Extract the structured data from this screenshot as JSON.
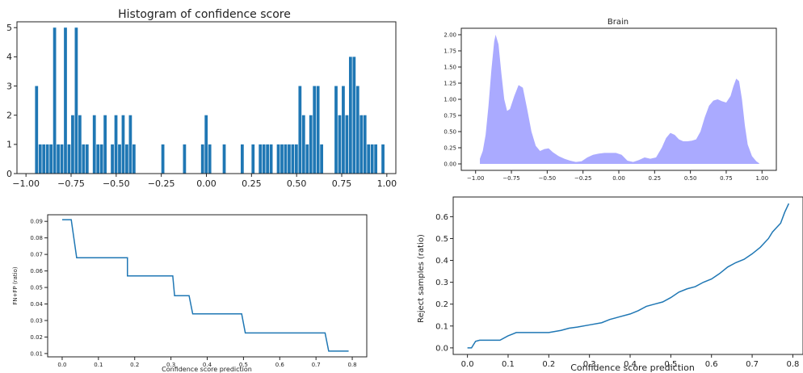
{
  "chart_data": [
    {
      "type": "bar",
      "title": "Histogram of confidence score",
      "xlabel": "",
      "ylabel": "",
      "xlim": [
        -1.05,
        1.05
      ],
      "ylim": [
        0,
        5.2
      ],
      "xticks": [
        -1.0,
        -0.75,
        -0.5,
        -0.25,
        0.0,
        0.25,
        0.5,
        0.75,
        1.0
      ],
      "xtick_labels": [
        "−1.00",
        "−0.75",
        "−0.50",
        "−0.25",
        "0.00",
        "0.25",
        "0.50",
        "0.75",
        "1.00"
      ],
      "yticks": [
        0,
        1,
        2,
        3,
        4,
        5
      ],
      "ytick_labels": [
        "0",
        "1",
        "2",
        "3",
        "4",
        "5"
      ],
      "color": "#1f77b4",
      "bin_width": 0.0195,
      "bin_centers": [
        -0.94,
        -0.92,
        -0.9,
        -0.88,
        -0.86,
        -0.84,
        -0.82,
        -0.8,
        -0.78,
        -0.76,
        -0.74,
        -0.72,
        -0.7,
        -0.68,
        -0.66,
        -0.62,
        -0.6,
        -0.58,
        -0.56,
        -0.52,
        -0.5,
        -0.48,
        -0.46,
        -0.44,
        -0.42,
        -0.4,
        -0.24,
        -0.12,
        -0.02,
        0.0,
        0.02,
        0.1,
        0.2,
        0.26,
        0.3,
        0.32,
        0.34,
        0.36,
        0.4,
        0.42,
        0.44,
        0.46,
        0.48,
        0.5,
        0.52,
        0.54,
        0.56,
        0.58,
        0.6,
        0.62,
        0.64,
        0.72,
        0.74,
        0.76,
        0.78,
        0.8,
        0.82,
        0.84,
        0.86,
        0.88,
        0.9,
        0.92,
        0.94,
        0.98
      ],
      "values": [
        3,
        1,
        1,
        1,
        1,
        5,
        1,
        1,
        5,
        1,
        2,
        5,
        2,
        1,
        1,
        2,
        1,
        1,
        2,
        1,
        2,
        1,
        2,
        1,
        2,
        1,
        1,
        1,
        1,
        2,
        1,
        1,
        1,
        1,
        1,
        1,
        1,
        1,
        1,
        1,
        1,
        1,
        1,
        1,
        3,
        2,
        1,
        2,
        3,
        3,
        1,
        3,
        2,
        3,
        2,
        4,
        4,
        3,
        2,
        2,
        1,
        1,
        1,
        1
      ]
    },
    {
      "type": "area",
      "title": "Brain",
      "xlabel": "",
      "ylabel": "",
      "xlim": [
        -1.1,
        1.1
      ],
      "ylim": [
        -0.1,
        2.1
      ],
      "xticks": [
        -1.0,
        -0.75,
        -0.5,
        -0.25,
        0.0,
        0.25,
        0.5,
        0.75,
        1.0
      ],
      "xtick_labels": [
        "−1.00",
        "−0.75",
        "−0.50",
        "−0.25",
        "0.00",
        "0.25",
        "0.50",
        "0.75",
        "1.00"
      ],
      "yticks": [
        0.0,
        0.25,
        0.5,
        0.75,
        1.0,
        1.25,
        1.5,
        1.75,
        2.0
      ],
      "ytick_labels": [
        "0.00",
        "0.25",
        "0.50",
        "0.75",
        "1.00",
        "1.25",
        "1.50",
        "1.75",
        "2.00"
      ],
      "color": "#aaaaff",
      "x": [
        -0.97,
        -0.95,
        -0.93,
        -0.91,
        -0.89,
        -0.87,
        -0.86,
        -0.84,
        -0.82,
        -0.8,
        -0.78,
        -0.76,
        -0.73,
        -0.7,
        -0.67,
        -0.64,
        -0.61,
        -0.58,
        -0.55,
        -0.52,
        -0.49,
        -0.46,
        -0.42,
        -0.38,
        -0.34,
        -0.3,
        -0.26,
        -0.22,
        -0.18,
        -0.14,
        -0.1,
        -0.06,
        -0.02,
        0.02,
        0.06,
        0.1,
        0.14,
        0.18,
        0.22,
        0.26,
        0.3,
        0.33,
        0.36,
        0.39,
        0.42,
        0.45,
        0.48,
        0.51,
        0.54,
        0.57,
        0.6,
        0.63,
        0.66,
        0.69,
        0.72,
        0.75,
        0.78,
        0.8,
        0.82,
        0.84,
        0.86,
        0.88,
        0.9,
        0.93,
        0.96,
        0.98
      ],
      "y": [
        0.08,
        0.2,
        0.45,
        0.9,
        1.45,
        1.9,
        2.0,
        1.85,
        1.4,
        1.0,
        0.82,
        0.85,
        1.05,
        1.22,
        1.18,
        0.85,
        0.5,
        0.28,
        0.2,
        0.23,
        0.24,
        0.18,
        0.12,
        0.08,
        0.05,
        0.03,
        0.04,
        0.1,
        0.14,
        0.16,
        0.17,
        0.17,
        0.17,
        0.14,
        0.05,
        0.03,
        0.06,
        0.1,
        0.08,
        0.1,
        0.25,
        0.4,
        0.48,
        0.45,
        0.38,
        0.35,
        0.35,
        0.36,
        0.38,
        0.5,
        0.72,
        0.9,
        0.98,
        1.0,
        0.97,
        0.95,
        1.05,
        1.2,
        1.32,
        1.28,
        1.0,
        0.6,
        0.3,
        0.12,
        0.04,
        0.01
      ]
    },
    {
      "type": "line",
      "title": "",
      "xlabel": "Confidence score prediction",
      "ylabel": "FN+FP (ratio)",
      "xlim": [
        -0.04,
        0.84
      ],
      "ylim": [
        0.008,
        0.094
      ],
      "xticks": [
        0.0,
        0.1,
        0.2,
        0.3,
        0.4,
        0.5,
        0.6,
        0.7,
        0.8
      ],
      "xtick_labels": [
        "0.0",
        "0.1",
        "0.2",
        "0.3",
        "0.4",
        "0.5",
        "0.6",
        "0.7",
        "0.8"
      ],
      "yticks": [
        0.01,
        0.02,
        0.03,
        0.04,
        0.05,
        0.06,
        0.07,
        0.08,
        0.09
      ],
      "ytick_labels": [
        "0.01",
        "0.02",
        "0.03",
        "0.04",
        "0.05",
        "0.06",
        "0.07",
        "0.08",
        "0.09"
      ],
      "color": "#1f77b4",
      "x": [
        0.0,
        0.025,
        0.04,
        0.04,
        0.18,
        0.18,
        0.305,
        0.31,
        0.35,
        0.36,
        0.495,
        0.505,
        0.725,
        0.735,
        0.79
      ],
      "y": [
        0.091,
        0.091,
        0.068,
        0.068,
        0.068,
        0.057,
        0.057,
        0.045,
        0.045,
        0.034,
        0.034,
        0.0225,
        0.0225,
        0.0115,
        0.0115
      ]
    },
    {
      "type": "line",
      "title": "",
      "xlabel": "Confidence score prediction",
      "ylabel": "Reject samples (ratio)",
      "xlim": [
        -0.035,
        0.825
      ],
      "ylim": [
        -0.03,
        0.69
      ],
      "xticks": [
        0.0,
        0.1,
        0.2,
        0.3,
        0.4,
        0.5,
        0.6,
        0.7,
        0.8
      ],
      "xtick_labels": [
        "0.0",
        "0.1",
        "0.2",
        "0.3",
        "0.4",
        "0.5",
        "0.6",
        "0.7",
        "0.8"
      ],
      "yticks": [
        0.0,
        0.1,
        0.2,
        0.3,
        0.4,
        0.5,
        0.6
      ],
      "ytick_labels": [
        "0.0",
        "0.1",
        "0.2",
        "0.3",
        "0.4",
        "0.5",
        "0.6"
      ],
      "color": "#1f77b4",
      "x": [
        0.0,
        0.01,
        0.02,
        0.03,
        0.08,
        0.1,
        0.12,
        0.15,
        0.2,
        0.23,
        0.25,
        0.27,
        0.3,
        0.33,
        0.35,
        0.37,
        0.4,
        0.42,
        0.44,
        0.46,
        0.48,
        0.5,
        0.52,
        0.54,
        0.56,
        0.58,
        0.6,
        0.62,
        0.64,
        0.66,
        0.68,
        0.7,
        0.72,
        0.74,
        0.75,
        0.76,
        0.77,
        0.78,
        0.79
      ],
      "y": [
        0.0,
        0.0,
        0.03,
        0.035,
        0.035,
        0.055,
        0.07,
        0.07,
        0.07,
        0.08,
        0.09,
        0.095,
        0.105,
        0.115,
        0.13,
        0.14,
        0.155,
        0.17,
        0.19,
        0.2,
        0.21,
        0.23,
        0.255,
        0.27,
        0.28,
        0.3,
        0.315,
        0.34,
        0.37,
        0.39,
        0.405,
        0.43,
        0.46,
        0.5,
        0.53,
        0.55,
        0.57,
        0.62,
        0.66
      ]
    }
  ]
}
